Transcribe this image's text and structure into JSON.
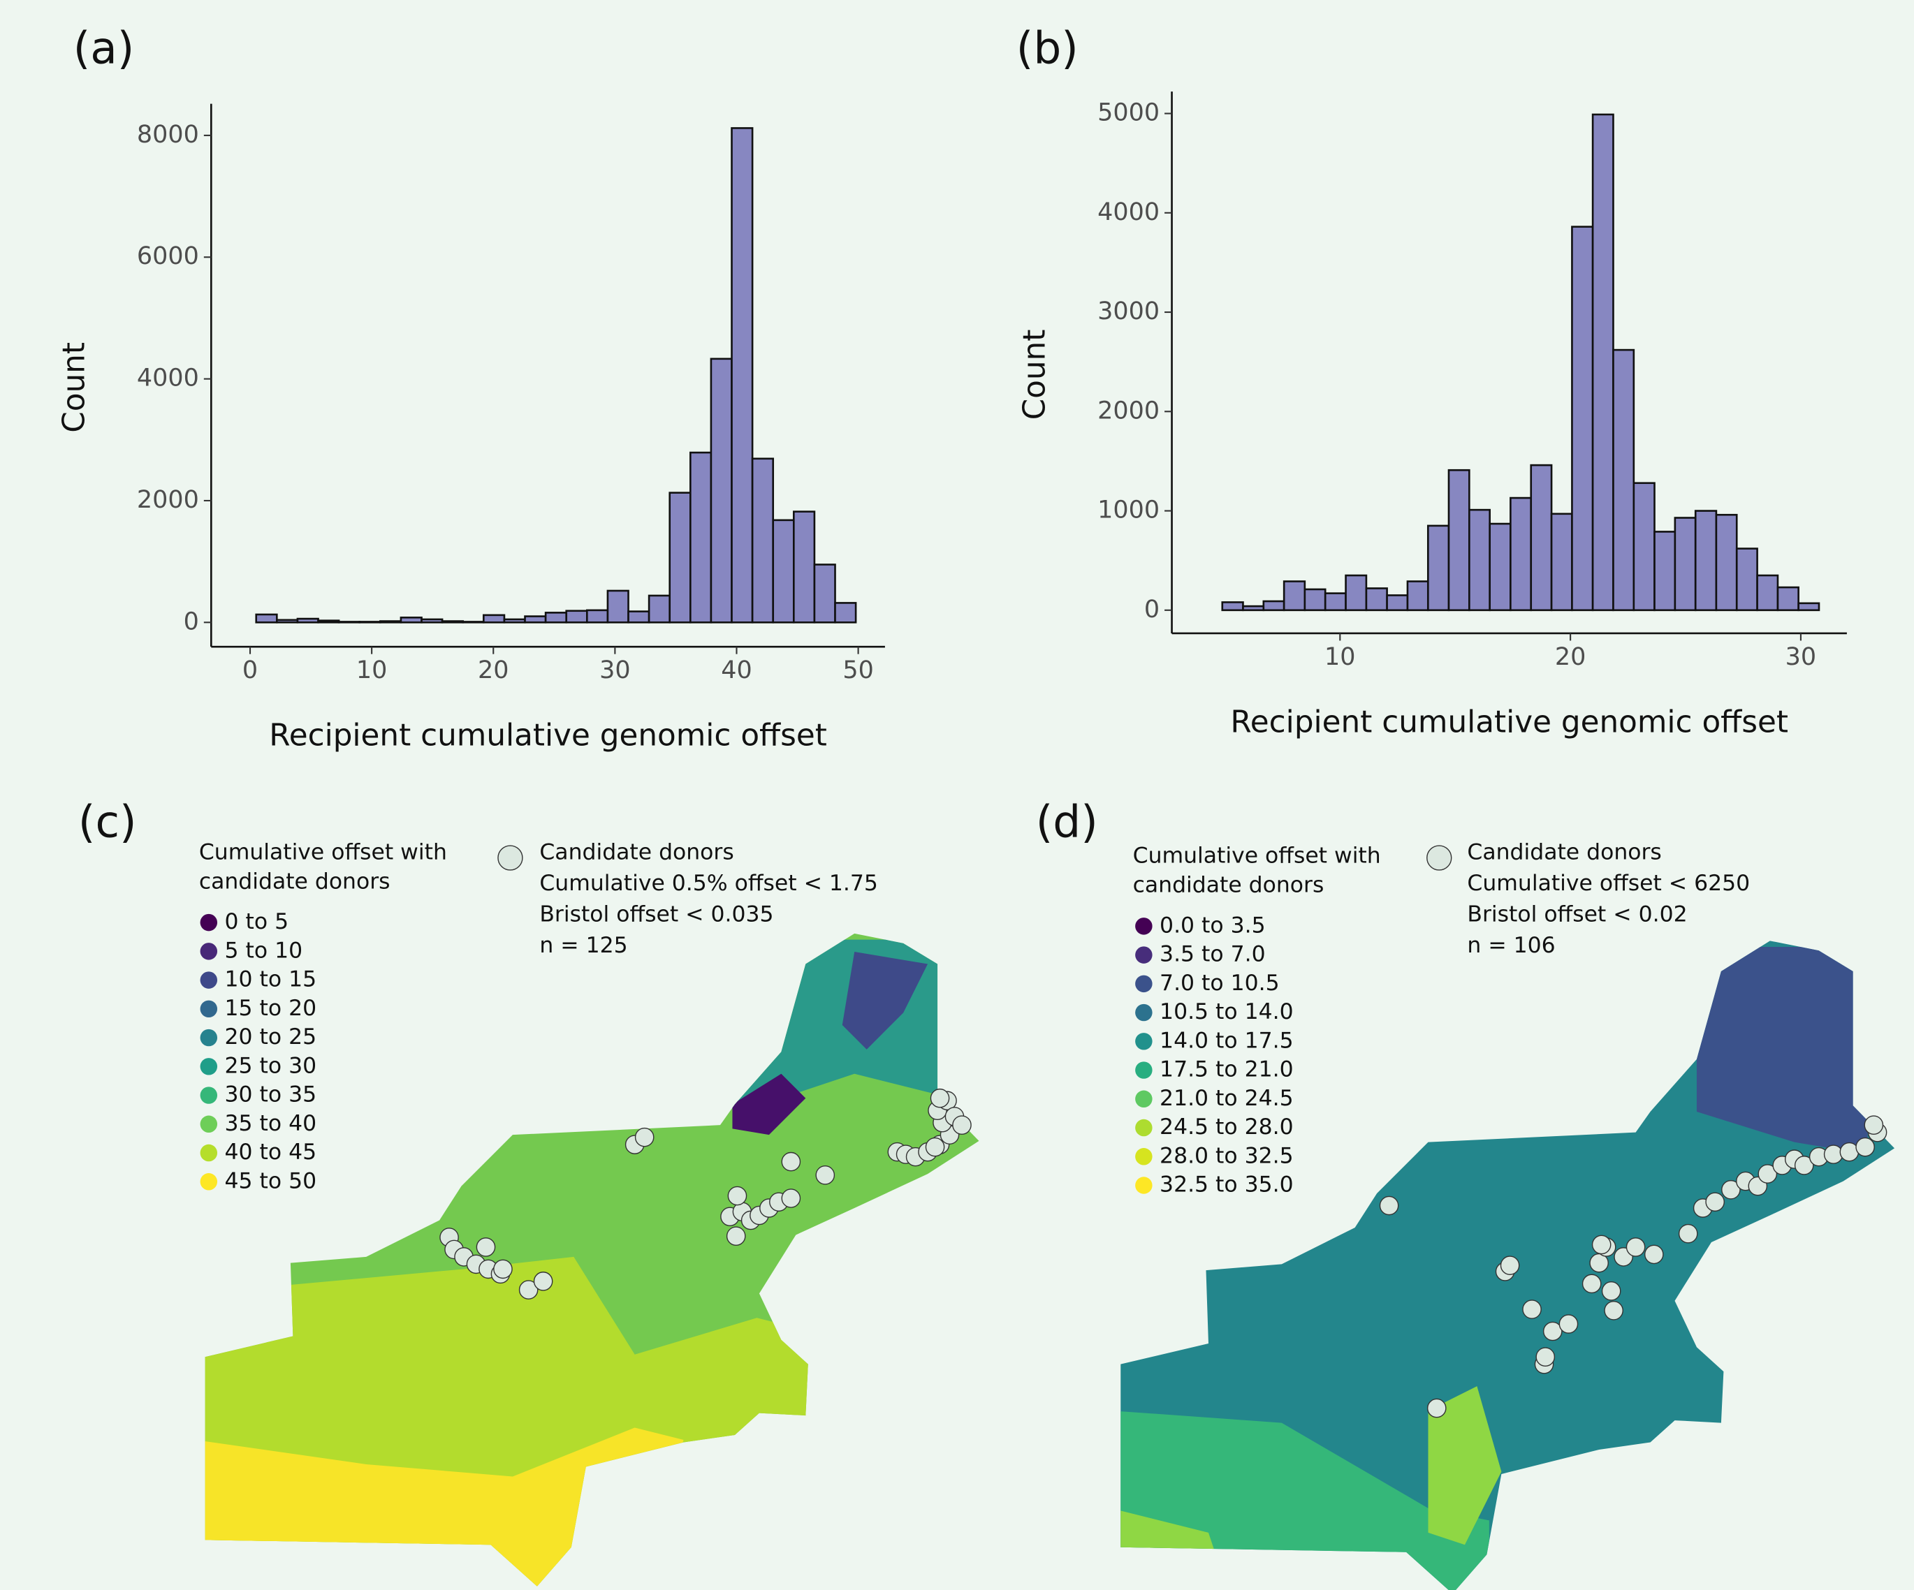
{
  "chart_data": [
    {
      "type": "histogram",
      "panel": "(a)",
      "color": "#8787c1",
      "bins": [
        -1.2,
        0.5,
        2.2,
        3.9,
        5.6,
        7.3,
        9.0,
        10.7,
        12.4,
        14.1,
        15.8,
        17.5,
        19.2,
        20.9,
        22.6,
        24.3,
        26.0,
        27.7,
        29.4,
        31.1,
        32.8,
        34.5,
        36.2,
        37.9,
        39.6,
        41.3,
        43.0,
        44.7,
        46.4,
        48.1,
        49.8
      ],
      "values": [
        0,
        130,
        40,
        60,
        30,
        10,
        10,
        20,
        80,
        50,
        20,
        10,
        120,
        50,
        100,
        160,
        190,
        200,
        520,
        180,
        440,
        2130,
        2790,
        4330,
        8120,
        2690,
        1680,
        1820,
        950,
        320
      ],
      "xlim": [
        -3.2,
        52.2
      ],
      "ylim": [
        -400,
        8520
      ],
      "xticks": [
        0,
        10,
        20,
        30,
        40,
        50
      ],
      "yticks": [
        0,
        2000,
        4000,
        6000,
        8000
      ],
      "x_label": "Recipient cumulative genomic offset",
      "y_label": "Count"
    },
    {
      "type": "histogram",
      "panel": "(b)",
      "color": "#8787c1",
      "bins": [
        4.0,
        4.89,
        5.79,
        6.68,
        7.57,
        8.47,
        9.36,
        10.25,
        11.14,
        12.04,
        12.93,
        13.82,
        14.72,
        15.61,
        16.5,
        17.4,
        18.29,
        19.18,
        20.07,
        20.97,
        21.86,
        22.75,
        23.65,
        24.54,
        25.43,
        26.33,
        27.22,
        28.11,
        29.0,
        29.9,
        30.79
      ],
      "values": [
        0,
        80,
        40,
        90,
        290,
        210,
        170,
        350,
        220,
        150,
        290,
        850,
        1410,
        1010,
        870,
        1130,
        1460,
        970,
        3860,
        4990,
        2620,
        1280,
        790,
        930,
        1000,
        960,
        620,
        350,
        230,
        70
      ],
      "xlim": [
        2.7,
        32.0
      ],
      "ylim": [
        -233,
        5221
      ],
      "xticks": [
        10,
        20,
        30
      ],
      "yticks": [
        0,
        1000,
        2000,
        3000,
        4000,
        5000
      ],
      "x_label": "Recipient cumulative genomic offset",
      "y_label": "Count"
    }
  ],
  "maps": [
    {
      "panel": "(c)",
      "legend_title": [
        "Cumulative offset with",
        "candidate donors"
      ],
      "legend": [
        {
          "label": "0 to 5",
          "color": "#440154"
        },
        {
          "label": "5 to 10",
          "color": "#482878"
        },
        {
          "label": "10 to 15",
          "color": "#3e4989"
        },
        {
          "label": "15 to 20",
          "color": "#31688e"
        },
        {
          "label": "20 to 25",
          "color": "#26828e"
        },
        {
          "label": "25 to 30",
          "color": "#1f9e89"
        },
        {
          "label": "30 to 35",
          "color": "#35b779"
        },
        {
          "label": "35 to 40",
          "color": "#6ece58"
        },
        {
          "label": "40 to 45",
          "color": "#b5de2b"
        },
        {
          "label": "45 to 50",
          "color": "#fde725"
        }
      ],
      "donor_legend": [
        "Candidate donors",
        "Cumulative 0.5% offset < 1.75",
        "Bristol offset < 0.035",
        "n = 125"
      ]
    },
    {
      "panel": "(d)",
      "legend_title": [
        "Cumulative offset with",
        "candidate donors"
      ],
      "legend": [
        {
          "label": "0.0 to 3.5",
          "color": "#440154"
        },
        {
          "label": "3.5 to 7.0",
          "color": "#472d7b"
        },
        {
          "label": "7.0 to 10.5",
          "color": "#3b528b"
        },
        {
          "label": "10.5 to 14.0",
          "color": "#2c728e"
        },
        {
          "label": "14.0 to 17.5",
          "color": "#21918c"
        },
        {
          "label": "17.5 to 21.0",
          "color": "#28ae80"
        },
        {
          "label": "21.0 to 24.5",
          "color": "#5ec962"
        },
        {
          "label": "24.5 to 28.0",
          "color": "#addc30"
        },
        {
          "label": "28.0 to 32.5",
          "color": "#d6e41f"
        },
        {
          "label": "32.5 to 35.0",
          "color": "#fde725"
        }
      ],
      "donor_legend": [
        "Candidate donors",
        "Cumulative offset < 6250",
        "Bristol offset < 0.02",
        "n = 106"
      ]
    }
  ]
}
